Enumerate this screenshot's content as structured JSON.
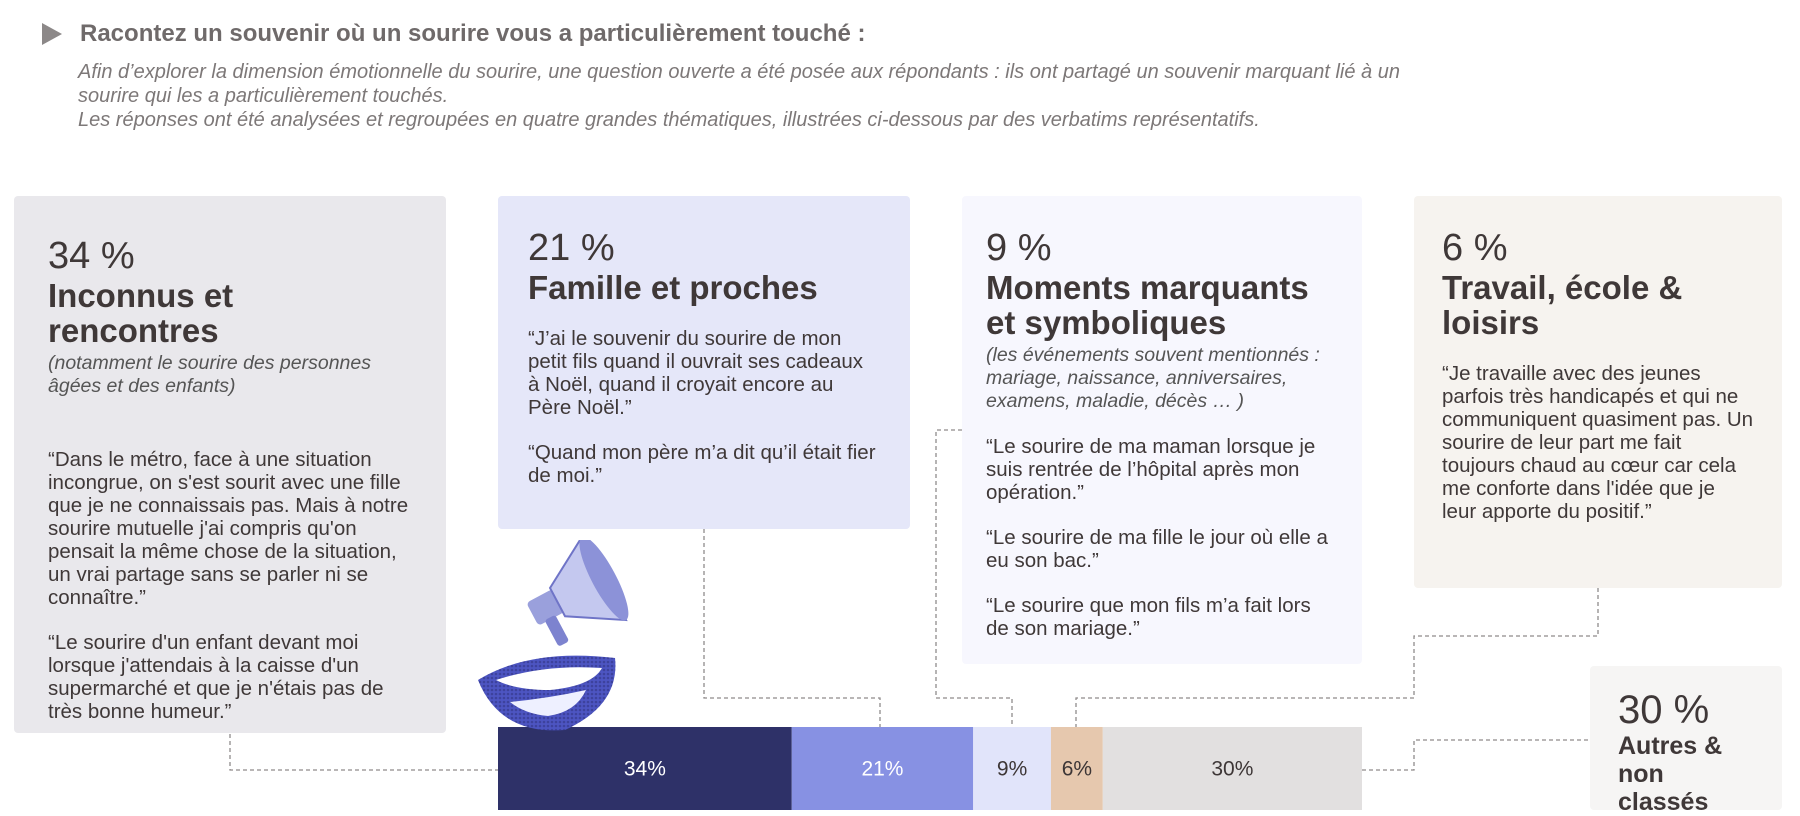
{
  "header": {
    "question": "Racontez un souvenir où un sourire vous a particulièrement touché :",
    "intro_line1": "Afin d’explorer la dimension émotionnelle du sourire, une question ouverte a été posée aux répondants : ils ont partagé un souvenir marquant lié à un sourire qui les a particulièrement touchés.",
    "intro_line2": "Les réponses ont été analysées et regroupées en quatre grandes thématiques, illustrées ci-dessous par des verbatims représentatifs."
  },
  "cards": {
    "c1": {
      "pct": "34 %",
      "title": "Inconnus et rencontres",
      "note": "(notamment le sourire des personnes âgées et des enfants)",
      "quote1": "“Dans le métro, face à une situation incongrue, on s'est sourit avec une fille que je ne connaissais pas. Mais à notre sourire mutuelle j'ai compris qu'on pensait la même chose de la situation, un vrai partage sans se parler ni se connaître.”",
      "quote2": "“Le sourire d'un enfant devant moi lorsque j'attendais à la caisse d'un supermarché et que je n'étais pas de très bonne humeur.”"
    },
    "c2": {
      "pct": "21 %",
      "title": "Famille et proches",
      "quote1": "“J’ai le souvenir du sourire de mon petit fils quand il ouvrait ses cadeaux à Noël, quand il croyait encore au Père Noël.”",
      "quote2": "“Quand mon père m’a dit qu’il était fier de moi.”"
    },
    "c3": {
      "pct": "9 %",
      "title": "Moments marquants et symboliques",
      "note": "(les événements souvent mentionnés : mariage, naissance, anniversaires, examens, maladie, décès … )",
      "quote1": "“Le sourire de ma maman lorsque je suis rentrée de l’hôpital après mon opération.”",
      "quote2": "“Le sourire de ma fille le jour où elle a eu son bac.”",
      "quote3": "“Le sourire que mon fils m’a fait lors de son mariage.”"
    },
    "c4": {
      "pct": "6 %",
      "title": "Travail, école & loisirs",
      "quote1": "“Je travaille avec des jeunes parfois très handicapés et qui ne communiquent quasiment pas. Un sourire de leur part me fait toujours chaud au cœur car cela me conforte dans l'idée que je leur apporte du positif.”"
    },
    "c5": {
      "pct": "30 %",
      "title": "Autres & non classés"
    }
  },
  "chart_data": {
    "type": "bar",
    "orientation": "horizontal-stacked",
    "categories": [
      "Inconnus et rencontres",
      "Famille et proches",
      "Moments marquants et symboliques",
      "Travail, école & loisirs",
      "Autres & non classés"
    ],
    "values": [
      34,
      21,
      9,
      6,
      30
    ],
    "labels": [
      "34%",
      "21%",
      "9%",
      "6%",
      "30%"
    ],
    "colors": [
      "#2e3168",
      "#8791e3",
      "#e1e4fa",
      "#e6c8ae",
      "#e2e0e0"
    ],
    "label_colors": [
      "#ffffff",
      "#ffffff",
      "#3d3636",
      "#3d3636",
      "#3d3636"
    ],
    "total": 100
  }
}
